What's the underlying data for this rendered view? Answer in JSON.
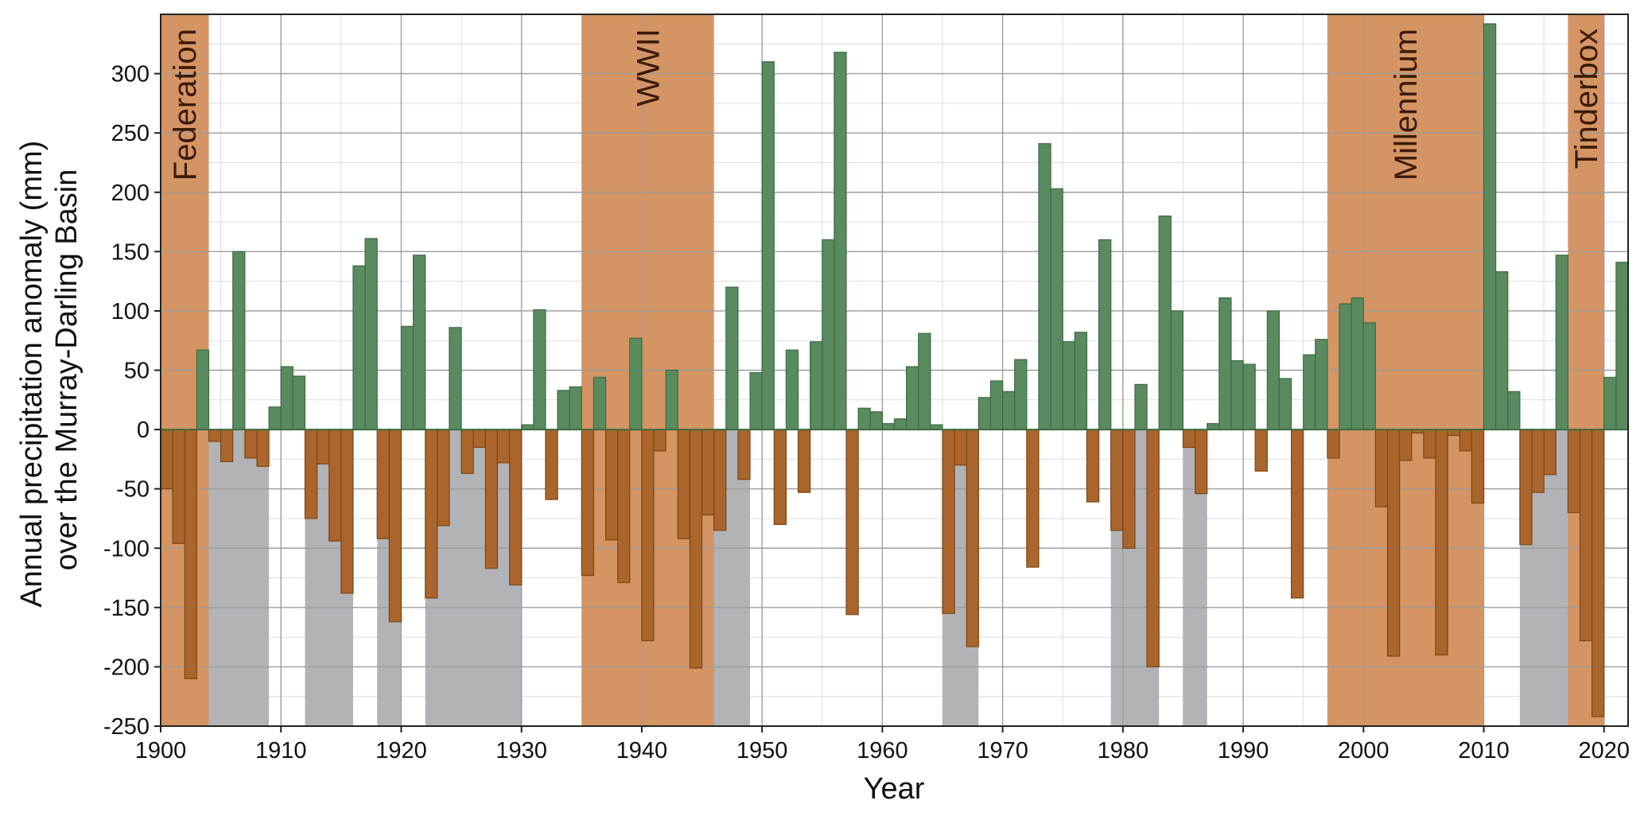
{
  "chart_data": {
    "type": "bar",
    "xlabel": "Year",
    "ylabel_lines": [
      "Annual precipitation anomaly (mm)",
      "over the Murray-Darling Basin"
    ],
    "xlim": [
      1900,
      2022
    ],
    "ylim": [
      -250,
      350
    ],
    "x_ticks": [
      1900,
      1910,
      1920,
      1930,
      1940,
      1950,
      1960,
      1970,
      1980,
      1990,
      2000,
      2010,
      2020
    ],
    "y_ticks": [
      -250,
      -200,
      -150,
      -100,
      -50,
      0,
      50,
      100,
      150,
      200,
      250,
      300
    ],
    "grid": true,
    "colors": {
      "positive": "#5a8a5f",
      "positive_edge": "#3d6b42",
      "negative": "#a9652c",
      "negative_edge": "#7d4515",
      "drought_band": "#d49463",
      "dry_spell_shade": "#b1b3b7"
    },
    "drought_periods": [
      {
        "label": "Federation",
        "start": 1900,
        "end": 1904
      },
      {
        "label": "WWII",
        "start": 1935,
        "end": 1946
      },
      {
        "label": "Millennium",
        "start": 1997,
        "end": 2010
      },
      {
        "label": "Tinderbox",
        "start": 2017,
        "end": 2020
      }
    ],
    "dry_spells": [
      {
        "start": 1900,
        "end": 1909
      },
      {
        "start": 1912,
        "end": 1916
      },
      {
        "start": 1918,
        "end": 1920
      },
      {
        "start": 1922,
        "end": 1930
      },
      {
        "start": 1937,
        "end": 1949
      },
      {
        "start": 1965,
        "end": 1968
      },
      {
        "start": 1979,
        "end": 1983
      },
      {
        "start": 1985,
        "end": 1987
      },
      {
        "start": 2001,
        "end": 2010
      },
      {
        "start": 2013,
        "end": 2020
      }
    ],
    "years": [
      1900,
      1901,
      1902,
      1903,
      1904,
      1905,
      1906,
      1907,
      1908,
      1909,
      1910,
      1911,
      1912,
      1913,
      1914,
      1915,
      1916,
      1917,
      1918,
      1919,
      1920,
      1921,
      1922,
      1923,
      1924,
      1925,
      1926,
      1927,
      1928,
      1929,
      1930,
      1931,
      1932,
      1933,
      1934,
      1935,
      1936,
      1937,
      1938,
      1939,
      1940,
      1941,
      1942,
      1943,
      1944,
      1945,
      1946,
      1947,
      1948,
      1949,
      1950,
      1951,
      1952,
      1953,
      1954,
      1955,
      1956,
      1957,
      1958,
      1959,
      1960,
      1961,
      1962,
      1963,
      1964,
      1965,
      1966,
      1967,
      1968,
      1969,
      1970,
      1971,
      1972,
      1973,
      1974,
      1975,
      1976,
      1977,
      1978,
      1979,
      1980,
      1981,
      1982,
      1983,
      1984,
      1985,
      1986,
      1987,
      1988,
      1989,
      1990,
      1991,
      1992,
      1993,
      1994,
      1995,
      1996,
      1997,
      1998,
      1999,
      2000,
      2001,
      2002,
      2003,
      2004,
      2005,
      2006,
      2007,
      2008,
      2009,
      2010,
      2011,
      2012,
      2013,
      2014,
      2015,
      2016,
      2017,
      2018,
      2019,
      2020,
      2021
    ],
    "values": [
      -50,
      -96,
      -210,
      67,
      -10,
      -27,
      150,
      -24,
      -31,
      19,
      53,
      45,
      -75,
      -29,
      -94,
      -138,
      138,
      161,
      -92,
      -162,
      87,
      147,
      -142,
      -81,
      86,
      -37,
      -15,
      -117,
      -28,
      -131,
      4,
      101,
      -59,
      33,
      36,
      -123,
      44,
      -93,
      -129,
      77,
      -178,
      -18,
      50,
      -92,
      -201,
      -72,
      -85,
      120,
      -42,
      48,
      310,
      -80,
      67,
      -53,
      74,
      160,
      318,
      -156,
      18,
      15,
      5,
      9,
      53,
      81,
      4,
      -155,
      -30,
      -183,
      27,
      41,
      32,
      59,
      -116,
      241,
      203,
      74,
      82,
      -61,
      160,
      -85,
      -100,
      38,
      -200,
      180,
      100,
      -15,
      -54,
      5,
      111,
      58,
      55,
      -35,
      100,
      43,
      -142,
      63,
      76,
      -24,
      106,
      111,
      90,
      -65,
      -191,
      -26,
      -3,
      -24,
      -190,
      -5,
      -18,
      -62,
      342,
      133,
      32,
      -97,
      -53,
      -38,
      147,
      -70,
      -178,
      -242,
      44,
      141
    ]
  }
}
